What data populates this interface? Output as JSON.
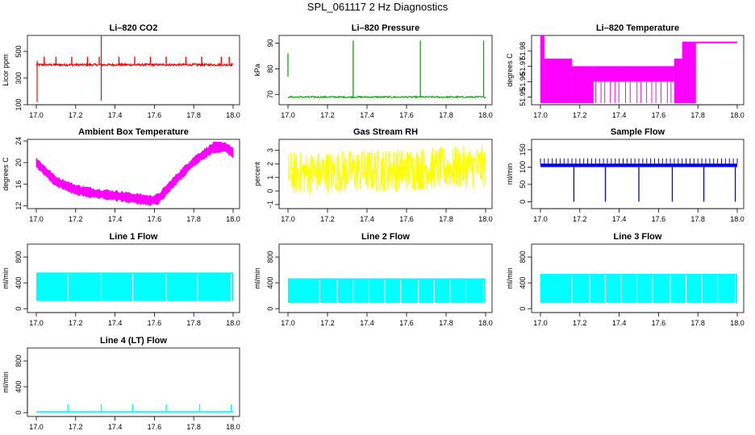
{
  "figure_title": "SPL_061117  2 Hz Diagnostics",
  "colors": {
    "co2": "#ff0000",
    "pressure": "#00b000",
    "temperature": "#ff00ff",
    "box": "#ff00ff",
    "rh": "#ffff00",
    "sample": "#0000ff",
    "line": "#00ffff"
  },
  "chart_data": [
    {
      "type": "line",
      "title": "Li–820 CO2",
      "ylabel": "Licor ppm",
      "xlim": [
        17.0,
        18.0
      ],
      "ylim": [
        100,
        620
      ],
      "x_ticks": [
        "17.0",
        "17.2",
        "17.4",
        "17.6",
        "17.8",
        "18.0"
      ],
      "y_ticks": [
        {
          "v": 100,
          "label": "100"
        },
        {
          "v": 300,
          "label": "300"
        },
        {
          "v": 500,
          "label": "500"
        }
      ],
      "color": "#ff0000",
      "pattern": {
        "kind": "co2",
        "baseline": 400,
        "noise": 8,
        "spikes_up_at": [
          17.04,
          17.1,
          17.18,
          17.26,
          17.32,
          17.42,
          17.5,
          17.58,
          17.66,
          17.76,
          17.84,
          17.94,
          17.98
        ],
        "spike_up_to": 460,
        "big_spike": {
          "x": 17.33,
          "min": 130,
          "max": 620
        }
      }
    },
    {
      "type": "line",
      "title": "Li–820 Pressure",
      "ylabel": "kPa",
      "xlim": [
        17.0,
        18.0
      ],
      "ylim": [
        66,
        93
      ],
      "x_ticks": [
        "17.0",
        "17.2",
        "17.4",
        "17.6",
        "17.8",
        "18.0"
      ],
      "y_ticks": [
        {
          "v": 70,
          "label": "70"
        },
        {
          "v": 80,
          "label": "80"
        },
        {
          "v": 90,
          "label": "90"
        }
      ],
      "color": "#00b000",
      "pattern": {
        "kind": "pressure",
        "baseline": 69,
        "noise": 0.3,
        "spikes_at": [
          17.33,
          17.67,
          17.99
        ],
        "spike_to": 91,
        "start_segment": {
          "x": 17.0,
          "from": 77,
          "to": 86
        }
      }
    },
    {
      "type": "area",
      "title": "Li–820 Temperature",
      "ylabel": "degrees C",
      "xlim": [
        17.0,
        18.0
      ],
      "ylim": [
        51.945,
        51.99
      ],
      "x_ticks": [
        "17.0",
        "17.2",
        "17.4",
        "17.6",
        "17.8",
        "18.0"
      ],
      "y_ticks": [
        {
          "v": 51.95,
          "label": "51.95"
        },
        {
          "v": 51.96,
          "label": "51.96"
        },
        {
          "v": 51.97,
          "label": "51.97"
        },
        {
          "v": 51.98,
          "label": "51.98"
        }
      ],
      "color": "#ff00ff",
      "pattern": {
        "kind": "temperature",
        "segments": [
          {
            "x0": 17.0,
            "x1": 17.02,
            "lo": 51.946,
            "hi": 51.99
          },
          {
            "x0": 17.02,
            "x1": 17.16,
            "lo": 51.946,
            "hi": 51.975
          },
          {
            "x0": 17.16,
            "x1": 17.27,
            "lo": 51.946,
            "hi": 51.97
          },
          {
            "x0": 17.27,
            "x1": 17.68,
            "lo": 51.96,
            "hi": 51.97
          },
          {
            "x0": 17.68,
            "x1": 17.72,
            "lo": 51.946,
            "hi": 51.975
          },
          {
            "x0": 17.72,
            "x1": 17.79,
            "lo": 51.946,
            "hi": 51.986
          },
          {
            "x0": 17.79,
            "x1": 18.0,
            "lo": 51.985,
            "hi": 51.986
          }
        ]
      }
    },
    {
      "type": "area",
      "title": "Ambient Box Temperature",
      "ylabel": "degrees C",
      "xlim": [
        17.0,
        18.0
      ],
      "ylim": [
        11.5,
        24.3
      ],
      "x_ticks": [
        "17.0",
        "17.2",
        "17.4",
        "17.6",
        "17.8",
        "18.0"
      ],
      "y_ticks": [
        {
          "v": 12,
          "label": "12"
        },
        {
          "v": 16,
          "label": "16"
        },
        {
          "v": 20,
          "label": "20"
        },
        {
          "v": 24,
          "label": "24"
        }
      ],
      "color": "#ff00ff",
      "pattern": {
        "kind": "band",
        "curve": [
          [
            17.0,
            20.0
          ],
          [
            17.1,
            16.5
          ],
          [
            17.2,
            15.0
          ],
          [
            17.3,
            14.3
          ],
          [
            17.4,
            13.9
          ],
          [
            17.5,
            13.4
          ],
          [
            17.58,
            13.0
          ],
          [
            17.62,
            13.3
          ],
          [
            17.7,
            16.5
          ],
          [
            17.8,
            20.2
          ],
          [
            17.9,
            22.8
          ],
          [
            17.96,
            22.9
          ],
          [
            18.0,
            21.8
          ]
        ],
        "half_width": 0.8
      }
    },
    {
      "type": "area",
      "title": "Gas Stream RH",
      "ylabel": "percent",
      "xlim": [
        17.0,
        18.0
      ],
      "ylim": [
        -1.3,
        3.8
      ],
      "x_ticks": [
        "17.0",
        "17.2",
        "17.4",
        "17.6",
        "17.8",
        "18.0"
      ],
      "y_ticks": [
        {
          "v": -1,
          "label": "−1"
        },
        {
          "v": 0,
          "label": "0"
        },
        {
          "v": 1,
          "label": "1"
        },
        {
          "v": 2,
          "label": "2"
        },
        {
          "v": 3,
          "label": "3"
        }
      ],
      "color": "#ffff00",
      "pattern": {
        "kind": "noise",
        "center": 1.3,
        "amp": 1.6,
        "slope": 0.5
      }
    },
    {
      "type": "line",
      "title": "Sample Flow",
      "ylabel": "ml/min",
      "xlim": [
        17.0,
        18.0
      ],
      "ylim": [
        -20,
        180
      ],
      "x_ticks": [
        "17.0",
        "17.2",
        "17.4",
        "17.6",
        "17.8",
        "18.0"
      ],
      "y_ticks": [
        {
          "v": 0,
          "label": "0"
        },
        {
          "v": 50,
          "label": "50"
        },
        {
          "v": 100,
          "label": "100"
        },
        {
          "v": 150,
          "label": "150"
        }
      ],
      "color": "#0000ff",
      "pattern": {
        "kind": "flow",
        "lo": 100,
        "hi": 110,
        "spike_every": 0.02,
        "spike_to": 125,
        "dips_at": [
          17.17,
          17.33,
          17.5,
          17.67,
          17.83,
          17.99
        ],
        "dip_to": 0
      }
    },
    {
      "type": "area",
      "title": "Line 1 Flow",
      "ylabel": "ml/min",
      "xlim": [
        17.0,
        18.0
      ],
      "ylim": [
        -60,
        1000
      ],
      "x_ticks": [
        "17.0",
        "17.2",
        "17.4",
        "17.6",
        "17.8",
        "18.0"
      ],
      "y_ticks": [
        {
          "v": 0,
          "label": "0"
        },
        {
          "v": 400,
          "label": "400"
        },
        {
          "v": 800,
          "label": "800"
        }
      ],
      "color": "#00ffff",
      "pattern": {
        "kind": "block",
        "lo": 120,
        "hi": 560,
        "gaps_at": [
          17.16,
          17.33,
          17.49,
          17.66,
          17.82,
          17.99
        ]
      }
    },
    {
      "type": "area",
      "title": "Line 2 Flow",
      "ylabel": "ml/min",
      "xlim": [
        17.0,
        18.0
      ],
      "ylim": [
        -60,
        1000
      ],
      "x_ticks": [
        "17.0",
        "17.2",
        "17.4",
        "17.6",
        "17.8",
        "18.0"
      ],
      "y_ticks": [
        {
          "v": 0,
          "label": "0"
        },
        {
          "v": 400,
          "label": "400"
        },
        {
          "v": 800,
          "label": "800"
        }
      ],
      "color": "#00ffff",
      "pattern": {
        "kind": "block",
        "lo": 90,
        "hi": 470,
        "gaps_at": [
          17.16,
          17.25,
          17.33,
          17.41,
          17.49,
          17.57,
          17.66,
          17.74,
          17.82,
          17.9,
          17.99
        ]
      }
    },
    {
      "type": "area",
      "title": "Line 3 Flow",
      "ylabel": "ml/min",
      "xlim": [
        17.0,
        18.0
      ],
      "ylim": [
        -60,
        1000
      ],
      "x_ticks": [
        "17.0",
        "17.2",
        "17.4",
        "17.6",
        "17.8",
        "18.0"
      ],
      "y_ticks": [
        {
          "v": 0,
          "label": "0"
        },
        {
          "v": 400,
          "label": "400"
        },
        {
          "v": 800,
          "label": "800"
        }
      ],
      "color": "#00ffff",
      "pattern": {
        "kind": "block",
        "lo": 90,
        "hi": 540,
        "gaps_at": [
          17.16,
          17.25,
          17.33,
          17.41,
          17.49,
          17.57,
          17.66,
          17.74,
          17.82,
          17.9,
          17.99
        ]
      }
    },
    {
      "type": "line",
      "title": "Line 4 (LT) Flow",
      "ylabel": "ml/min",
      "xlim": [
        17.0,
        18.0
      ],
      "ylim": [
        -60,
        1000
      ],
      "x_ticks": [
        "17.0",
        "17.2",
        "17.4",
        "17.6",
        "17.8",
        "18.0"
      ],
      "y_ticks": [
        {
          "v": 0,
          "label": "0"
        },
        {
          "v": 400,
          "label": "400"
        },
        {
          "v": 800,
          "label": "800"
        }
      ],
      "color": "#00ffff",
      "pattern": {
        "kind": "lowflow",
        "baseline": 10,
        "spikes_at": [
          17.16,
          17.33,
          17.49,
          17.66,
          17.83,
          17.99
        ],
        "spike_to": 130
      }
    }
  ]
}
